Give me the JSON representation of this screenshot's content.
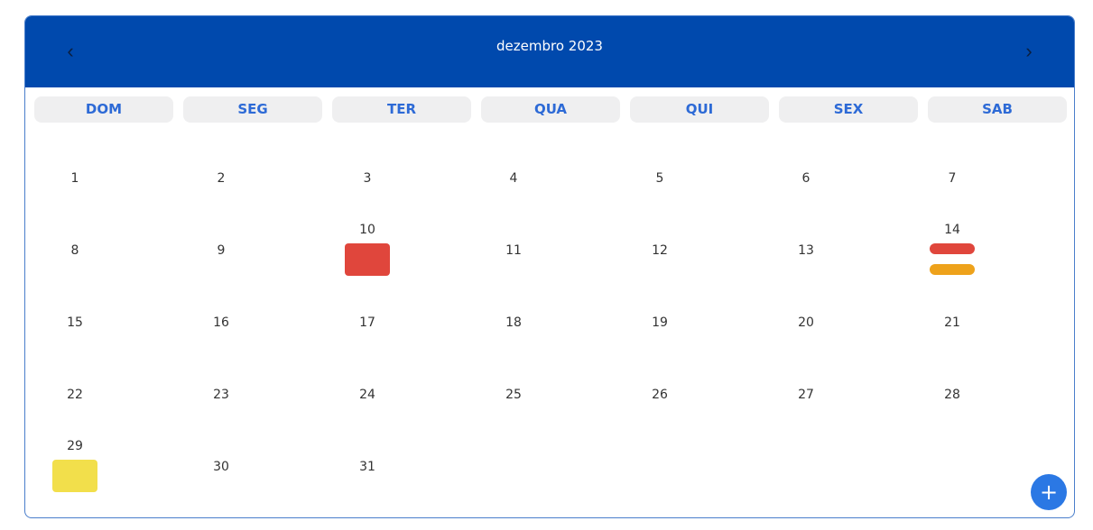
{
  "header": {
    "month_title": "dezembro 2023",
    "prev_label": "‹",
    "next_label": "›"
  },
  "weekdays": [
    "DOM",
    "SEG",
    "TER",
    "QUA",
    "QUI",
    "SEX",
    "SAB"
  ],
  "weeks": [
    [
      "1",
      "2",
      "3",
      "4",
      "5",
      "6",
      "7"
    ],
    [
      "8",
      "9",
      "10",
      "11",
      "12",
      "13",
      "14"
    ],
    [
      "15",
      "16",
      "17",
      "18",
      "19",
      "20",
      "21"
    ],
    [
      "22",
      "23",
      "24",
      "25",
      "26",
      "27",
      "28"
    ],
    [
      "29",
      "30",
      "31",
      "",
      "",
      "",
      ""
    ]
  ],
  "events": [
    {
      "day": "10",
      "kind": "block",
      "color": "#e0463c"
    },
    {
      "day": "14",
      "kind": "bar",
      "color": "#e0463c"
    },
    {
      "day": "14",
      "kind": "bar",
      "color": "#eea21b"
    },
    {
      "day": "29",
      "kind": "block",
      "color": "#f2df4b"
    }
  ],
  "fab": {
    "label": "+",
    "icon": "plus-icon"
  }
}
